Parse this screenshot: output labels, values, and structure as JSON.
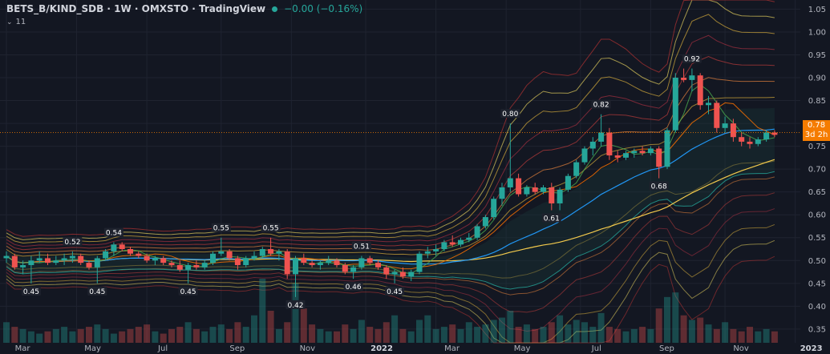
{
  "header": {
    "symbol": "BETS_B/KIND_SDB · 1W · OMXSTO · TradingView",
    "change": "−0.00 (−0.16%)",
    "indicator_count": "11",
    "up_color": "#26a69a",
    "down_color": "#ef5350"
  },
  "price_tag": {
    "value": "0.78",
    "countdown": "3d 2h",
    "color": "#f57c00"
  },
  "chart_data": {
    "type": "candlestick",
    "title": "BETS_B/KIND_SDB · 1W · OMXSTO",
    "y_axis": {
      "position": "right",
      "ylim": [
        0.32,
        1.07
      ],
      "ticks": [
        "1.05",
        "1.00",
        "0.95",
        "0.90",
        "0.85",
        "0.80",
        "0.75",
        "0.70",
        "0.65",
        "0.60",
        "0.55",
        "0.50",
        "0.45",
        "0.40",
        "0.35"
      ]
    },
    "x_axis": {
      "ticks": [
        {
          "label": "Mar",
          "w": 0,
          "major": false
        },
        {
          "label": "May",
          "w": 8.5,
          "major": false
        },
        {
          "label": "Jul",
          "w": 17,
          "major": false
        },
        {
          "label": "Sep",
          "w": 26,
          "major": false
        },
        {
          "label": "Nov",
          "w": 34.5,
          "major": false
        },
        {
          "label": "2022",
          "w": 43.5,
          "major": true
        },
        {
          "label": "Mar",
          "w": 52,
          "major": false
        },
        {
          "label": "May",
          "w": 60.5,
          "major": false
        },
        {
          "label": "Jul",
          "w": 69.5,
          "major": false
        },
        {
          "label": "Sep",
          "w": 78,
          "major": false
        },
        {
          "label": "Nov",
          "w": 87,
          "major": false
        },
        {
          "label": "2023",
          "w": 95.5,
          "major": true
        }
      ]
    },
    "candles": {
      "ohlc": [
        [
          0.505,
          0.52,
          0.495,
          0.51
        ],
        [
          0.51,
          0.515,
          0.48,
          0.485
        ],
        [
          0.485,
          0.5,
          0.47,
          0.49
        ],
        [
          0.49,
          0.51,
          0.45,
          0.5
        ],
        [
          0.5,
          0.52,
          0.495,
          0.505
        ],
        [
          0.505,
          0.515,
          0.49,
          0.495
        ],
        [
          0.495,
          0.51,
          0.49,
          0.5
        ],
        [
          0.5,
          0.515,
          0.49,
          0.505
        ],
        [
          0.505,
          0.52,
          0.495,
          0.51
        ],
        [
          0.51,
          0.515,
          0.49,
          0.495
        ],
        [
          0.495,
          0.5,
          0.48,
          0.485
        ],
        [
          0.485,
          0.51,
          0.45,
          0.505
        ],
        [
          0.505,
          0.525,
          0.5,
          0.52
        ],
        [
          0.52,
          0.54,
          0.51,
          0.535
        ],
        [
          0.535,
          0.54,
          0.52,
          0.525
        ],
        [
          0.525,
          0.53,
          0.51,
          0.515
        ],
        [
          0.515,
          0.52,
          0.505,
          0.51
        ],
        [
          0.51,
          0.515,
          0.495,
          0.5
        ],
        [
          0.5,
          0.51,
          0.49,
          0.505
        ],
        [
          0.505,
          0.51,
          0.49,
          0.495
        ],
        [
          0.495,
          0.5,
          0.485,
          0.49
        ],
        [
          0.49,
          0.5,
          0.475,
          0.48
        ],
        [
          0.48,
          0.495,
          0.45,
          0.49
        ],
        [
          0.49,
          0.5,
          0.48,
          0.485
        ],
        [
          0.485,
          0.5,
          0.48,
          0.495
        ],
        [
          0.495,
          0.52,
          0.49,
          0.515
        ],
        [
          0.515,
          0.55,
          0.51,
          0.52
        ],
        [
          0.52,
          0.525,
          0.5,
          0.505
        ],
        [
          0.505,
          0.51,
          0.48,
          0.49
        ],
        [
          0.49,
          0.51,
          0.485,
          0.505
        ],
        [
          0.505,
          0.52,
          0.5,
          0.51
        ],
        [
          0.51,
          0.53,
          0.505,
          0.525
        ],
        [
          0.525,
          0.55,
          0.51,
          0.515
        ],
        [
          0.515,
          0.525,
          0.5,
          0.52
        ],
        [
          0.52,
          0.525,
          0.46,
          0.47
        ],
        [
          0.47,
          0.51,
          0.42,
          0.505
        ],
        [
          0.505,
          0.515,
          0.49,
          0.495
        ],
        [
          0.495,
          0.5,
          0.485,
          0.49
        ],
        [
          0.49,
          0.5,
          0.48,
          0.495
        ],
        [
          0.495,
          0.51,
          0.49,
          0.5
        ],
        [
          0.5,
          0.505,
          0.485,
          0.49
        ],
        [
          0.49,
          0.495,
          0.47,
          0.475
        ],
        [
          0.475,
          0.49,
          0.46,
          0.485
        ],
        [
          0.485,
          0.51,
          0.48,
          0.505
        ],
        [
          0.505,
          0.51,
          0.49,
          0.495
        ],
        [
          0.495,
          0.5,
          0.48,
          0.485
        ],
        [
          0.485,
          0.49,
          0.46,
          0.47
        ],
        [
          0.47,
          0.48,
          0.45,
          0.475
        ],
        [
          0.475,
          0.485,
          0.46,
          0.465
        ],
        [
          0.465,
          0.48,
          0.455,
          0.475
        ],
        [
          0.475,
          0.52,
          0.47,
          0.515
        ],
        [
          0.515,
          0.53,
          0.505,
          0.52
        ],
        [
          0.52,
          0.535,
          0.51,
          0.525
        ],
        [
          0.525,
          0.545,
          0.52,
          0.54
        ],
        [
          0.54,
          0.555,
          0.53,
          0.535
        ],
        [
          0.535,
          0.55,
          0.53,
          0.545
        ],
        [
          0.545,
          0.56,
          0.54,
          0.55
        ],
        [
          0.55,
          0.58,
          0.545,
          0.575
        ],
        [
          0.575,
          0.6,
          0.57,
          0.595
        ],
        [
          0.595,
          0.64,
          0.59,
          0.635
        ],
        [
          0.635,
          0.67,
          0.62,
          0.66
        ],
        [
          0.66,
          0.8,
          0.65,
          0.68
        ],
        [
          0.68,
          0.69,
          0.64,
          0.645
        ],
        [
          0.645,
          0.665,
          0.64,
          0.66
        ],
        [
          0.66,
          0.67,
          0.645,
          0.65
        ],
        [
          0.65,
          0.665,
          0.645,
          0.66
        ],
        [
          0.66,
          0.67,
          0.61,
          0.625
        ],
        [
          0.625,
          0.66,
          0.61,
          0.655
        ],
        [
          0.655,
          0.69,
          0.65,
          0.685
        ],
        [
          0.685,
          0.72,
          0.68,
          0.715
        ],
        [
          0.715,
          0.75,
          0.71,
          0.745
        ],
        [
          0.745,
          0.77,
          0.73,
          0.76
        ],
        [
          0.76,
          0.82,
          0.75,
          0.78
        ],
        [
          0.78,
          0.79,
          0.72,
          0.73
        ],
        [
          0.73,
          0.74,
          0.715,
          0.725
        ],
        [
          0.725,
          0.74,
          0.72,
          0.735
        ],
        [
          0.735,
          0.745,
          0.725,
          0.74
        ],
        [
          0.74,
          0.75,
          0.73,
          0.735
        ],
        [
          0.735,
          0.75,
          0.73,
          0.745
        ],
        [
          0.745,
          0.75,
          0.68,
          0.705
        ],
        [
          0.705,
          0.79,
          0.7,
          0.785
        ],
        [
          0.785,
          0.91,
          0.78,
          0.9
        ],
        [
          0.9,
          0.92,
          0.89,
          0.895
        ],
        [
          0.895,
          0.92,
          0.87,
          0.905
        ],
        [
          0.905,
          0.91,
          0.83,
          0.84
        ],
        [
          0.84,
          0.86,
          0.82,
          0.845
        ],
        [
          0.845,
          0.85,
          0.78,
          0.79
        ],
        [
          0.79,
          0.815,
          0.78,
          0.8
        ],
        [
          0.8,
          0.81,
          0.76,
          0.77
        ],
        [
          0.77,
          0.78,
          0.75,
          0.76
        ],
        [
          0.76,
          0.77,
          0.745,
          0.755
        ],
        [
          0.755,
          0.77,
          0.75,
          0.765
        ],
        [
          0.765,
          0.785,
          0.76,
          0.78
        ],
        [
          0.78,
          0.785,
          0.77,
          0.775
        ]
      ]
    },
    "volume": [
      9,
      7,
      6,
      5,
      4,
      5,
      6,
      7,
      5,
      6,
      7,
      8,
      6,
      4,
      5,
      6,
      7,
      8,
      5,
      4,
      6,
      7,
      9,
      6,
      5,
      7,
      8,
      6,
      9,
      7,
      12,
      28,
      14,
      6,
      9,
      26,
      15,
      8,
      6,
      5,
      5,
      8,
      6,
      10,
      7,
      6,
      9,
      12,
      6,
      5,
      10,
      12,
      6,
      7,
      8,
      6,
      9,
      7,
      8,
      10,
      11,
      14,
      7,
      8,
      6,
      7,
      9,
      12,
      8,
      10,
      9,
      7,
      13,
      7,
      6,
      5,
      6,
      7,
      6,
      15,
      20,
      22,
      12,
      10,
      11,
      8,
      6,
      9,
      6,
      5,
      7,
      5,
      6,
      5
    ],
    "high_low_labels": [
      {
        "text": "0.45",
        "i": 3,
        "pos": "below",
        "price": 0.45
      },
      {
        "text": "0.52",
        "i": 8,
        "pos": "above",
        "price": 0.52
      },
      {
        "text": "0.54",
        "i": 13,
        "pos": "above",
        "price": 0.54
      },
      {
        "text": "0.45",
        "i": 11,
        "pos": "below",
        "price": 0.45
      },
      {
        "text": "0.45",
        "i": 22,
        "pos": "below",
        "price": 0.45
      },
      {
        "text": "0.55",
        "i": 26,
        "pos": "above",
        "price": 0.55
      },
      {
        "text": "0.55",
        "i": 32,
        "pos": "above",
        "price": 0.55
      },
      {
        "text": "0.42",
        "i": 35,
        "pos": "below",
        "price": 0.42
      },
      {
        "text": "0.51",
        "i": 43,
        "pos": "above",
        "price": 0.51
      },
      {
        "text": "0.46",
        "i": 42,
        "pos": "below",
        "price": 0.46
      },
      {
        "text": "0.45",
        "i": 47,
        "pos": "below",
        "price": 0.45
      },
      {
        "text": "0.80",
        "i": 61,
        "pos": "above",
        "price": 0.8
      },
      {
        "text": "0.61",
        "i": 66,
        "pos": "below",
        "price": 0.61
      },
      {
        "text": "0.82",
        "i": 72,
        "pos": "above",
        "price": 0.82
      },
      {
        "text": "0.68",
        "i": 79,
        "pos": "below",
        "price": 0.68
      },
      {
        "text": "0.92",
        "i": 83,
        "pos": "above",
        "price": 0.92
      }
    ],
    "current_price": 0.78,
    "legend": "none",
    "grid": true
  }
}
